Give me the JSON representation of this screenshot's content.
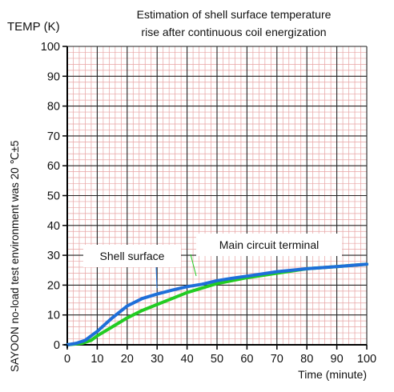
{
  "chart_data": {
    "type": "line",
    "title_lines": [
      "Estimation of shell surface temperature",
      "rise after continuous coil energization"
    ],
    "ylabel": "TEMP (K)",
    "xlabel": "Time (minute)",
    "side_note": "SAYOON no-load test environment was 20 ℃±5",
    "xlim": [
      0,
      100
    ],
    "ylim": [
      0,
      100
    ],
    "xticks": [
      0,
      10,
      20,
      30,
      40,
      50,
      60,
      70,
      80,
      90,
      100
    ],
    "yticks": [
      0,
      10,
      20,
      30,
      40,
      50,
      60,
      70,
      80,
      90,
      100
    ],
    "grid": true,
    "series": [
      {
        "name": "Shell surface",
        "color": "#1e6fd9",
        "x": [
          0,
          3,
          6,
          10,
          15,
          20,
          25,
          30,
          35,
          40,
          45,
          50,
          55,
          60,
          70,
          80,
          90,
          100
        ],
        "y": [
          0,
          0.5,
          1.5,
          4.5,
          9,
          13,
          15.5,
          17,
          18.3,
          19.5,
          20.3,
          21.5,
          22.3,
          23,
          24.5,
          25.5,
          26.2,
          27
        ]
      },
      {
        "name": "Main circuit terminal",
        "color": "#22cc22",
        "x": [
          0,
          5,
          8,
          10,
          15,
          20,
          25,
          30,
          35,
          40,
          45,
          50,
          55,
          60,
          70,
          80,
          90,
          100
        ],
        "y": [
          0,
          0.5,
          1.5,
          3,
          6,
          9,
          11.5,
          13.5,
          15.5,
          17.5,
          19,
          20.5,
          21.5,
          22.5,
          24,
          25.5,
          26.2,
          27
        ]
      }
    ]
  }
}
